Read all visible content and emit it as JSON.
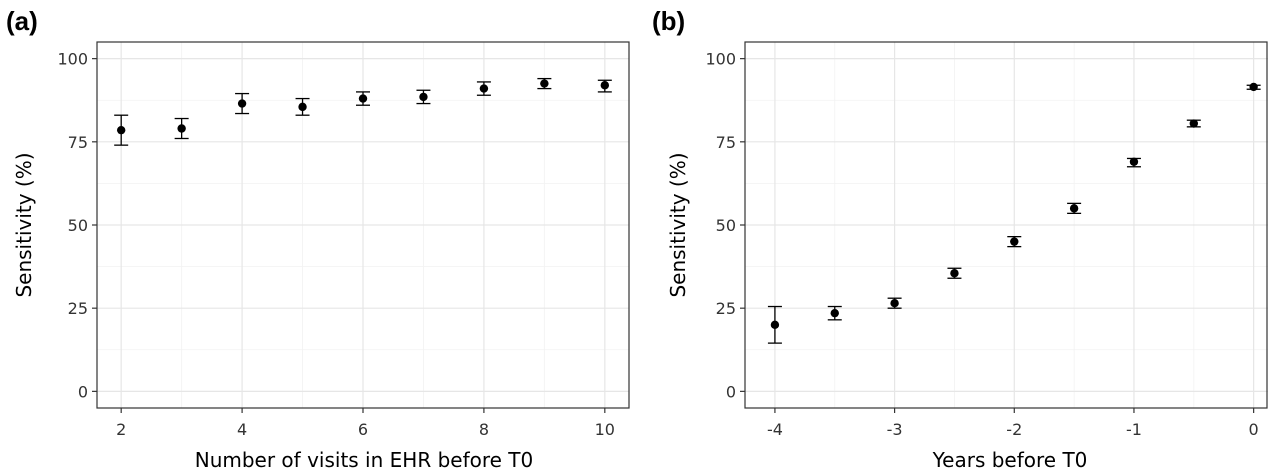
{
  "chart_data": [
    {
      "panel_label": "(a)",
      "type": "scatter",
      "xlabel": "Number of visits in EHR before T0",
      "ylabel": "Sensitivity (%)",
      "xlim": [
        1.6,
        10.4
      ],
      "ylim": [
        -5,
        105
      ],
      "x_ticks": [
        2,
        4,
        6,
        8,
        10
      ],
      "y_ticks": [
        0,
        25,
        50,
        75,
        100
      ],
      "grid": true,
      "points": [
        {
          "x": 2,
          "y": 78.5,
          "lo": 74.0,
          "hi": 83.0
        },
        {
          "x": 3,
          "y": 79.0,
          "lo": 76.0,
          "hi": 82.0
        },
        {
          "x": 4,
          "y": 86.5,
          "lo": 83.5,
          "hi": 89.5
        },
        {
          "x": 5,
          "y": 85.5,
          "lo": 83.0,
          "hi": 88.0
        },
        {
          "x": 6,
          "y": 88.0,
          "lo": 86.0,
          "hi": 90.0
        },
        {
          "x": 7,
          "y": 88.5,
          "lo": 86.5,
          "hi": 90.5
        },
        {
          "x": 8,
          "y": 91.0,
          "lo": 89.0,
          "hi": 93.0
        },
        {
          "x": 9,
          "y": 92.5,
          "lo": 91.0,
          "hi": 94.0
        },
        {
          "x": 10,
          "y": 92.0,
          "lo": 90.0,
          "hi": 93.5
        }
      ]
    },
    {
      "panel_label": "(b)",
      "type": "scatter",
      "xlabel": "Years before T0",
      "ylabel": "Sensitivity (%)",
      "xlim": [
        -4.25,
        0.12
      ],
      "ylim": [
        -5,
        105
      ],
      "x_ticks": [
        -4,
        -3,
        -2,
        -1,
        0
      ],
      "y_ticks": [
        0,
        25,
        50,
        75,
        100
      ],
      "grid": true,
      "points": [
        {
          "x": -4.0,
          "y": 20.0,
          "lo": 14.5,
          "hi": 25.5
        },
        {
          "x": -3.5,
          "y": 23.5,
          "lo": 21.5,
          "hi": 25.5
        },
        {
          "x": -3.0,
          "y": 26.5,
          "lo": 25.0,
          "hi": 28.0
        },
        {
          "x": -2.5,
          "y": 35.5,
          "lo": 34.0,
          "hi": 37.0
        },
        {
          "x": -2.0,
          "y": 45.0,
          "lo": 43.5,
          "hi": 46.5
        },
        {
          "x": -1.5,
          "y": 55.0,
          "lo": 53.5,
          "hi": 56.5
        },
        {
          "x": -1.0,
          "y": 69.0,
          "lo": 67.5,
          "hi": 70.0
        },
        {
          "x": -0.5,
          "y": 80.5,
          "lo": 79.5,
          "hi": 81.5
        },
        {
          "x": 0.0,
          "y": 91.5,
          "lo": 90.8,
          "hi": 92.0
        }
      ]
    }
  ]
}
